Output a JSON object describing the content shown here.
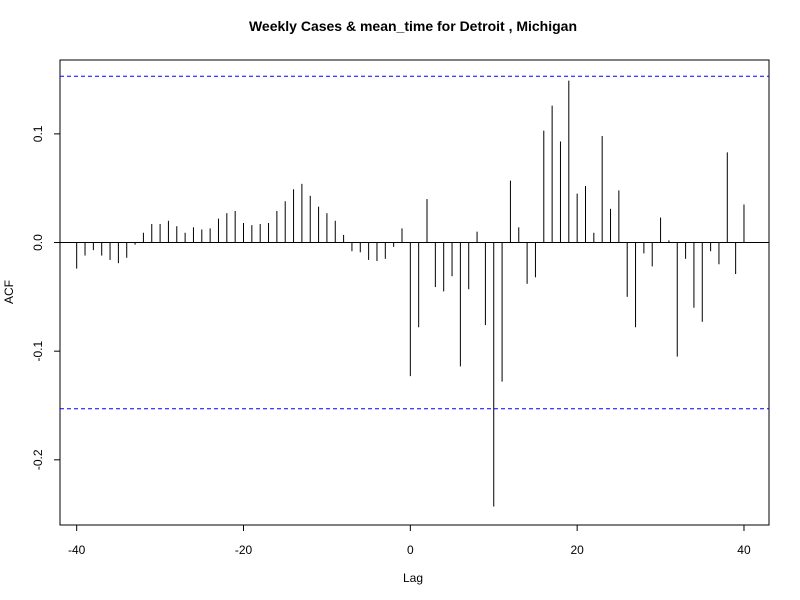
{
  "chart_data": {
    "type": "bar",
    "subtype": "acf-ccf-stem",
    "title": "Weekly Cases & mean_time for Detroit , Michigan",
    "xlabel": "Lag",
    "ylabel": "ACF",
    "xlim": [
      -42,
      43
    ],
    "ylim": [
      -0.26,
      0.168
    ],
    "xticks": [
      -40,
      -20,
      0,
      20,
      40
    ],
    "xtick_labels": [
      "-40",
      "-20",
      "0",
      "20",
      "40"
    ],
    "yticks": [
      -0.2,
      -0.1,
      0.0,
      0.1
    ],
    "ytick_labels": [
      "-0.2",
      "-0.1",
      "0.0",
      "0.1"
    ],
    "confidence_bounds": [
      0.153,
      -0.153
    ],
    "colors": {
      "stem": "#000000",
      "ci": "#0000ff",
      "axis": "#000000"
    },
    "lags": [
      -40,
      -39,
      -38,
      -37,
      -36,
      -35,
      -34,
      -33,
      -32,
      -31,
      -30,
      -29,
      -28,
      -27,
      -26,
      -25,
      -24,
      -23,
      -22,
      -21,
      -20,
      -19,
      -18,
      -17,
      -16,
      -15,
      -14,
      -13,
      -12,
      -11,
      -10,
      -9,
      -8,
      -7,
      -6,
      -5,
      -4,
      -3,
      -2,
      -1,
      0,
      1,
      2,
      3,
      4,
      5,
      6,
      7,
      8,
      9,
      10,
      11,
      12,
      13,
      14,
      15,
      16,
      17,
      18,
      19,
      20,
      21,
      22,
      23,
      24,
      25,
      26,
      27,
      28,
      29,
      30,
      31,
      32,
      33,
      34,
      35,
      36,
      37,
      38,
      39,
      40
    ],
    "values": [
      -0.024,
      -0.012,
      -0.007,
      -0.012,
      -0.016,
      -0.019,
      -0.014,
      -0.002,
      0.009,
      0.017,
      0.017,
      0.02,
      0.015,
      0.009,
      0.014,
      0.012,
      0.013,
      0.022,
      0.027,
      0.029,
      0.018,
      0.016,
      0.017,
      0.018,
      0.029,
      0.038,
      0.049,
      0.054,
      0.043,
      0.033,
      0.027,
      0.02,
      0.007,
      -0.008,
      -0.009,
      -0.016,
      -0.017,
      -0.015,
      -0.004,
      0.013,
      -0.123,
      -0.078,
      0.04,
      -0.041,
      -0.045,
      -0.031,
      -0.114,
      -0.043,
      0.01,
      -0.076,
      -0.243,
      -0.128,
      0.057,
      0.014,
      -0.038,
      -0.032,
      0.103,
      0.126,
      0.093,
      0.149,
      0.045,
      0.052,
      0.009,
      0.098,
      0.031,
      0.048,
      -0.05,
      -0.078,
      -0.01,
      -0.022,
      0.023,
      0.002,
      -0.105,
      -0.015,
      -0.06,
      -0.073,
      -0.008,
      -0.02,
      0.083,
      -0.029,
      0.035
    ]
  }
}
